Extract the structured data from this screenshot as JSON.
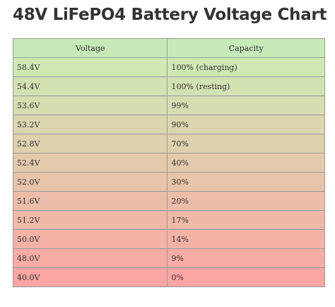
{
  "page": {
    "title": "48V LiFePO4 Battery Voltage Chart"
  },
  "table": {
    "headers": [
      "Voltage",
      "Capacity"
    ],
    "header_color": "#c6eab8",
    "top_color": "#cfe8b4",
    "bottom_color": "#fca6a4",
    "rows": [
      {
        "voltage": "58.4V",
        "capacity": "100% (charging)"
      },
      {
        "voltage": "54.4V",
        "capacity": "100% (resting)"
      },
      {
        "voltage": "53.6V",
        "capacity": "99%"
      },
      {
        "voltage": "53.2V",
        "capacity": "90%"
      },
      {
        "voltage": "52.8V",
        "capacity": "70%"
      },
      {
        "voltage": "52.4V",
        "capacity": "40%"
      },
      {
        "voltage": "52.0V",
        "capacity": "30%"
      },
      {
        "voltage": "51.6V",
        "capacity": "20%"
      },
      {
        "voltage": "51.2V",
        "capacity": "17%"
      },
      {
        "voltage": "50.0V",
        "capacity": "14%"
      },
      {
        "voltage": "48.0V",
        "capacity": "9%"
      },
      {
        "voltage": "40.0V",
        "capacity": "0%"
      }
    ]
  }
}
